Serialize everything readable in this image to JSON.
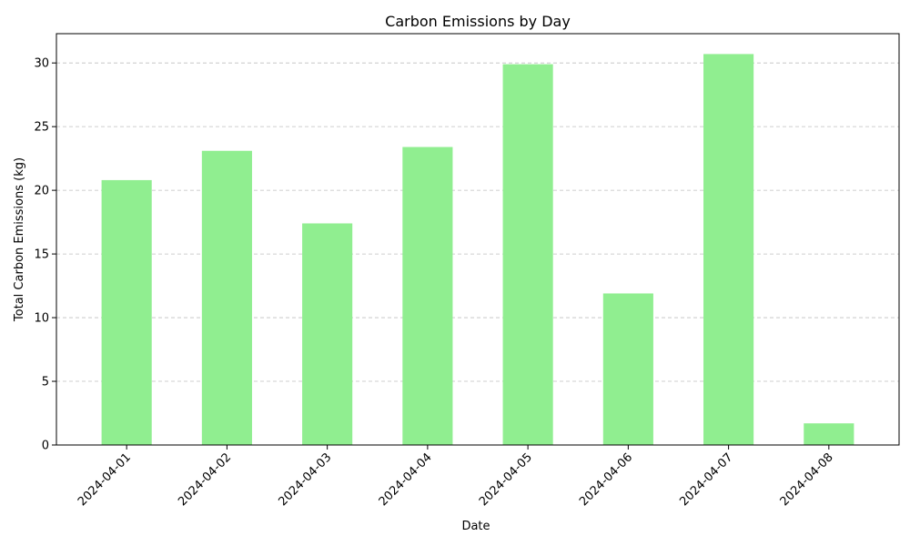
{
  "chart_data": {
    "type": "bar",
    "title": "Carbon Emissions by Day",
    "xlabel": "Date",
    "ylabel": "Total Carbon Emissions (kg)",
    "categories": [
      "2024-04-01",
      "2024-04-02",
      "2024-04-03",
      "2024-04-04",
      "2024-04-05",
      "2024-04-06",
      "2024-04-07",
      "2024-04-08"
    ],
    "values": [
      20.8,
      23.1,
      17.4,
      23.4,
      29.9,
      11.9,
      30.7,
      1.7
    ],
    "ylim": [
      0,
      32.3
    ],
    "yticks": [
      0,
      5,
      10,
      15,
      20,
      25,
      30
    ],
    "bar_color": "#90ee90",
    "grid": "y, dashed",
    "legend": "none"
  }
}
